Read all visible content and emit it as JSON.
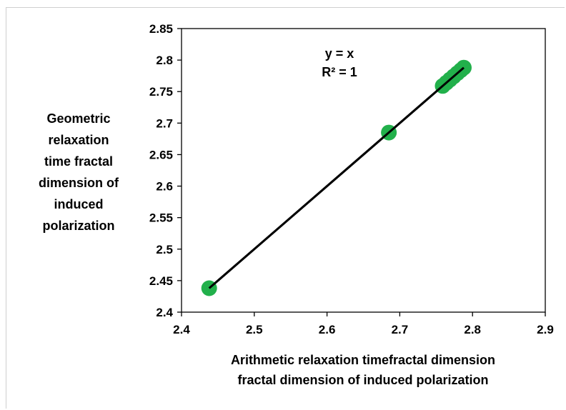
{
  "chart_data": {
    "type": "scatter",
    "title": "",
    "xlabel": [
      "Arithmetic relaxation timefractal dimension",
      "fractal dimension of induced polarization"
    ],
    "ylabel": [
      "Geometric",
      "relaxation",
      "time fractal",
      "dimension of",
      "induced",
      "polarization"
    ],
    "xlim": [
      2.4,
      2.9
    ],
    "ylim": [
      2.4,
      2.85
    ],
    "xticks": [
      "2.4",
      "2.5",
      "2.6",
      "2.7",
      "2.8",
      "2.9"
    ],
    "yticks": [
      "2.4",
      "2.45",
      "2.5",
      "2.55",
      "2.6",
      "2.65",
      "2.7",
      "2.75",
      "2.8",
      "2.85"
    ],
    "grid": false,
    "legend": "none",
    "points": [
      {
        "x": 2.438,
        "y": 2.438
      },
      {
        "x": 2.685,
        "y": 2.685
      },
      {
        "x": 2.759,
        "y": 2.759
      },
      {
        "x": 2.764,
        "y": 2.764
      },
      {
        "x": 2.769,
        "y": 2.769
      },
      {
        "x": 2.774,
        "y": 2.774
      },
      {
        "x": 2.779,
        "y": 2.779
      },
      {
        "x": 2.784,
        "y": 2.784
      },
      {
        "x": 2.788,
        "y": 2.788
      }
    ],
    "trendline": {
      "x": [
        2.438,
        2.788
      ],
      "y": [
        2.438,
        2.788
      ]
    },
    "annotation": [
      "y = x",
      "R² = 1"
    ],
    "marker_color": "#22b04b",
    "line_color": "#000000"
  }
}
